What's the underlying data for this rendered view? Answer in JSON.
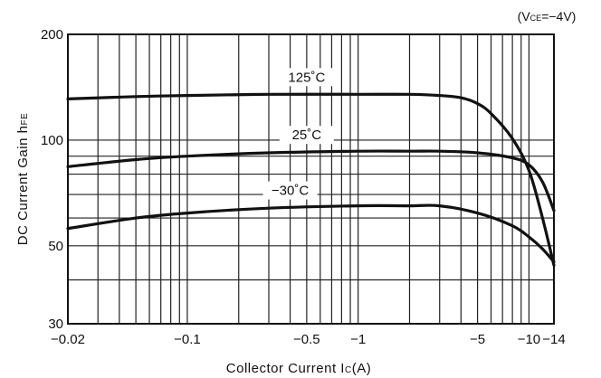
{
  "chart_data": {
    "type": "line",
    "note": "(V",
    "note_sub": "CE",
    "note_tail": "=−4V)",
    "xlabel": "Collector Current I",
    "xlabel_sub": "C",
    "xlabel_tail": "(A)",
    "ylabel": "DC Current Gain h",
    "ylabel_sub": "FE",
    "x_scale": "log",
    "y_scale": "log",
    "xlim": [
      -0.02,
      -14
    ],
    "ylim": [
      30,
      200
    ],
    "grid": true,
    "x_ticks": [
      {
        "value": -0.02,
        "label": "−0.02"
      },
      {
        "value": -0.1,
        "label": "−0.1"
      },
      {
        "value": -0.5,
        "label": "−0.5"
      },
      {
        "value": -1,
        "label": "−1"
      },
      {
        "value": -5,
        "label": "−5"
      },
      {
        "value": -10,
        "label": "−10"
      },
      {
        "value": -14,
        "label": "−14"
      }
    ],
    "y_ticks": [
      {
        "value": 30,
        "label": "30"
      },
      {
        "value": 50,
        "label": "50"
      },
      {
        "value": 100,
        "label": "100"
      },
      {
        "value": 200,
        "label": "200"
      }
    ],
    "series": [
      {
        "name": "125˚C",
        "x": [
          -0.02,
          -0.05,
          -0.1,
          -0.3,
          -1,
          -2,
          -3,
          -4,
          -5,
          -6,
          -8,
          -10,
          -12,
          -14
        ],
        "y": [
          131,
          133,
          134,
          135,
          135,
          135,
          134,
          132,
          127,
          119,
          101,
          82,
          60,
          44
        ]
      },
      {
        "name": "25˚C",
        "x": [
          -0.02,
          -0.05,
          -0.1,
          -0.3,
          -1,
          -2,
          -3,
          -5,
          -8,
          -10,
          -12,
          -14
        ],
        "y": [
          84,
          88,
          90,
          92,
          93,
          93,
          93,
          92,
          89,
          85,
          76,
          63
        ]
      },
      {
        "name": "−30˚C",
        "x": [
          -0.02,
          -0.05,
          -0.1,
          -0.3,
          -1,
          -2,
          -3,
          -5,
          -8,
          -10,
          -12,
          -14
        ],
        "y": [
          56,
          60,
          62,
          64,
          65,
          65,
          65,
          62,
          57,
          53,
          49,
          45
        ]
      }
    ]
  }
}
